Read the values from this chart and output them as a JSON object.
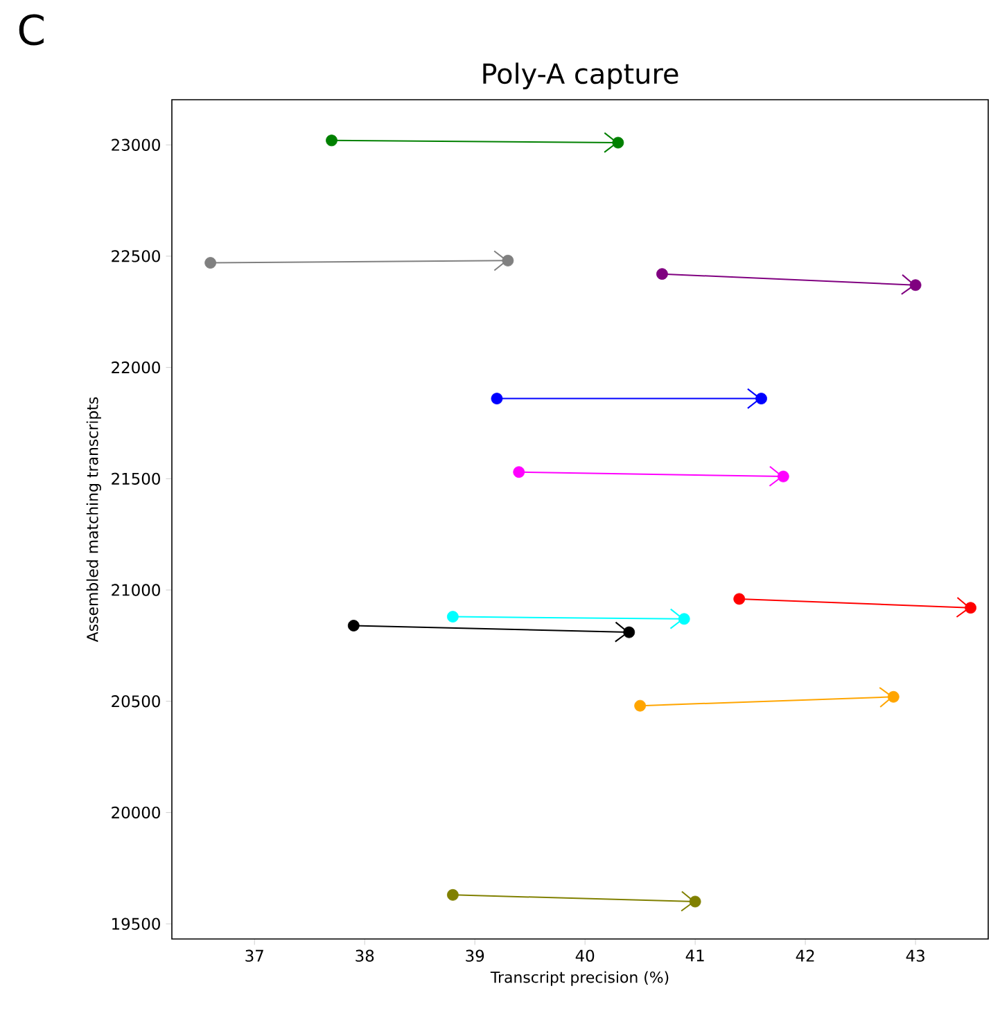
{
  "chart_data": {
    "type": "line",
    "title": "Poly-A capture",
    "xlabel": "Transcript precision (%)",
    "ylabel": "Assembled matching transcripts",
    "annotations": [
      "C"
    ],
    "marker": "circle",
    "grid": false,
    "legend": false,
    "xlim": [
      36.25,
      43.66
    ],
    "ylim": [
      19432,
      23203
    ],
    "xticks": [
      37,
      38,
      39,
      40,
      41,
      42,
      43
    ],
    "yticks": [
      19500,
      20000,
      20500,
      21000,
      21500,
      22000,
      22500,
      23000
    ],
    "series": [
      {
        "color": "#008000",
        "x": [
          37.7,
          40.3
        ],
        "values": [
          23020,
          23010
        ]
      },
      {
        "color": "#808080",
        "x": [
          36.6,
          39.3
        ],
        "values": [
          22470,
          22480
        ]
      },
      {
        "color": "#800080",
        "x": [
          40.7,
          43.0
        ],
        "values": [
          22420,
          22370
        ]
      },
      {
        "color": "#0000ff",
        "x": [
          39.2,
          41.6
        ],
        "values": [
          21860,
          21860
        ]
      },
      {
        "color": "#ff00ff",
        "x": [
          39.4,
          41.8
        ],
        "values": [
          21530,
          21510
        ]
      },
      {
        "color": "#ff0000",
        "x": [
          41.4,
          43.5
        ],
        "values": [
          20960,
          20920
        ]
      },
      {
        "color": "#00ffff",
        "x": [
          38.8,
          40.9
        ],
        "values": [
          20880,
          20870
        ]
      },
      {
        "color": "#000000",
        "x": [
          37.9,
          40.4
        ],
        "values": [
          20840,
          20810
        ]
      },
      {
        "color": "#ffa500",
        "x": [
          40.5,
          42.8
        ],
        "values": [
          20480,
          20520
        ]
      },
      {
        "color": "#808000",
        "x": [
          38.8,
          41.0
        ],
        "values": [
          19630,
          19600
        ]
      }
    ]
  }
}
